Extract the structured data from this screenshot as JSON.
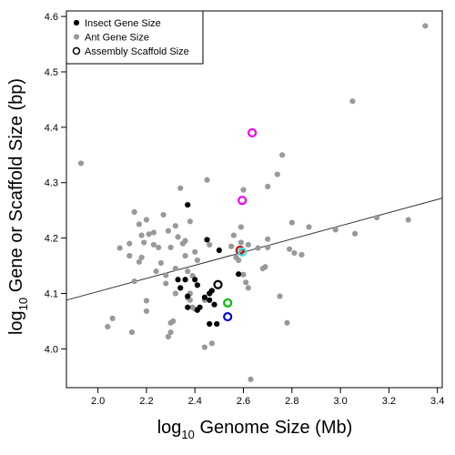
{
  "chart_data": {
    "type": "scatter",
    "title": "",
    "xlabel": {
      "base": "log",
      "sub": "10",
      "rest": " Genome Size (Mb)"
    },
    "ylabel": {
      "base": "log",
      "sub": "10",
      "rest": " Gene or Scaffold Size (bp)"
    },
    "xlim": [
      1.87,
      3.42
    ],
    "ylim": [
      3.93,
      4.61
    ],
    "xticks": [
      2.0,
      2.2,
      2.4,
      2.6,
      2.8,
      3.0,
      3.2,
      3.4
    ],
    "xtick_labels": [
      "2.0",
      "2.2",
      "2.4",
      "2.6",
      "2.8",
      "3.0",
      "3.2",
      "3.4"
    ],
    "yticks": [
      4.0,
      4.1,
      4.2,
      4.3,
      4.4,
      4.5,
      4.6
    ],
    "ytick_labels": [
      "4.0",
      "4.1",
      "4.2",
      "4.3",
      "4.4",
      "4.5",
      "4.6"
    ],
    "grid": false,
    "legend_position": "top-left",
    "legend": [
      {
        "label": "Insect Gene Size",
        "marker": "filled",
        "color": "#000000"
      },
      {
        "label": "Ant Gene Size",
        "marker": "filled",
        "color": "#999999"
      },
      {
        "label": "Assembly Scaffold Size",
        "marker": "open",
        "color": "#000000"
      }
    ],
    "series": [
      {
        "legend_index": 1,
        "marker": "filled",
        "color": "#999999",
        "points": [
          [
            1.93,
            4.335
          ],
          [
            2.06,
            4.055
          ],
          [
            2.04,
            4.04
          ],
          [
            2.09,
            4.182
          ],
          [
            2.13,
            4.19
          ],
          [
            2.13,
            4.168
          ],
          [
            2.15,
            4.247
          ],
          [
            2.15,
            4.122
          ],
          [
            2.14,
            4.03
          ],
          [
            2.17,
            4.225
          ],
          [
            2.17,
            4.157
          ],
          [
            2.18,
            4.165
          ],
          [
            2.18,
            4.205
          ],
          [
            2.19,
            4.192
          ],
          [
            2.2,
            4.087
          ],
          [
            2.2,
            4.068
          ],
          [
            2.2,
            4.233
          ],
          [
            2.21,
            4.207
          ],
          [
            2.23,
            4.21
          ],
          [
            2.23,
            4.188
          ],
          [
            2.24,
            4.14
          ],
          [
            2.26,
            4.155
          ],
          [
            2.25,
            4.183
          ],
          [
            2.27,
            4.242
          ],
          [
            2.28,
            4.133
          ],
          [
            2.28,
            4.118
          ],
          [
            2.29,
            4.213
          ],
          [
            2.3,
            4.183
          ],
          [
            2.32,
            4.222
          ],
          [
            2.32,
            4.145
          ],
          [
            2.29,
            4.022
          ],
          [
            2.3,
            4.03
          ],
          [
            2.3,
            4.047
          ],
          [
            2.31,
            4.05
          ],
          [
            2.32,
            4.1
          ],
          [
            2.34,
            4.29
          ],
          [
            2.33,
            4.202
          ],
          [
            2.35,
            4.19
          ],
          [
            2.36,
            4.195
          ],
          [
            2.36,
            4.168
          ],
          [
            2.37,
            4.14
          ],
          [
            2.37,
            4.092
          ],
          [
            2.38,
            4.1
          ],
          [
            2.38,
            4.088
          ],
          [
            2.38,
            4.23
          ],
          [
            2.39,
            4.132
          ],
          [
            2.39,
            4.075
          ],
          [
            2.4,
            4.175
          ],
          [
            2.41,
            4.16
          ],
          [
            2.4,
            4.072
          ],
          [
            2.44,
            4.088
          ],
          [
            2.44,
            4.003
          ],
          [
            2.45,
            4.305
          ],
          [
            2.46,
            4.188
          ],
          [
            2.46,
            4.088
          ],
          [
            2.47,
            4.01
          ],
          [
            2.55,
            4.185
          ],
          [
            2.56,
            4.205
          ],
          [
            2.57,
            4.165
          ],
          [
            2.58,
            4.16
          ],
          [
            2.59,
            4.192
          ],
          [
            2.59,
            4.22
          ],
          [
            2.6,
            4.287
          ],
          [
            2.59,
            4.175
          ],
          [
            2.6,
            4.134
          ],
          [
            2.61,
            4.12
          ],
          [
            2.62,
            4.188
          ],
          [
            2.62,
            4.11
          ],
          [
            2.63,
            3.945
          ],
          [
            2.66,
            4.182
          ],
          [
            2.68,
            4.145
          ],
          [
            2.69,
            4.148
          ],
          [
            2.7,
            4.183
          ],
          [
            2.7,
            4.198
          ],
          [
            2.7,
            4.293
          ],
          [
            2.74,
            4.315
          ],
          [
            2.76,
            4.35
          ],
          [
            2.75,
            4.095
          ],
          [
            2.78,
            4.047
          ],
          [
            2.79,
            4.18
          ],
          [
            2.8,
            4.228
          ],
          [
            2.81,
            4.173
          ],
          [
            2.84,
            4.17
          ],
          [
            2.87,
            4.22
          ],
          [
            2.98,
            4.215
          ],
          [
            3.05,
            4.447
          ],
          [
            3.06,
            4.208
          ],
          [
            3.15,
            4.237
          ],
          [
            3.28,
            4.233
          ],
          [
            3.35,
            4.583
          ]
        ]
      },
      {
        "legend_index": 0,
        "marker": "filled",
        "color": "#000000",
        "points": [
          [
            2.37,
            4.26
          ],
          [
            2.33,
            4.125
          ],
          [
            2.36,
            4.125
          ],
          [
            2.34,
            4.11
          ],
          [
            2.37,
            4.095
          ],
          [
            2.37,
            4.075
          ],
          [
            2.4,
            4.125
          ],
          [
            2.41,
            4.115
          ],
          [
            2.42,
            4.075
          ],
          [
            2.41,
            4.07
          ],
          [
            2.45,
            4.197
          ],
          [
            2.44,
            4.093
          ],
          [
            2.46,
            4.1
          ],
          [
            2.46,
            4.088
          ],
          [
            2.47,
            4.105
          ],
          [
            2.48,
            4.08
          ],
          [
            2.46,
            4.045
          ],
          [
            2.49,
            4.045
          ],
          [
            2.5,
            4.178
          ],
          [
            2.58,
            4.135
          ]
        ]
      },
      {
        "legend_index": 2,
        "marker": "open",
        "points": [
          [
            2.636,
            4.39,
            "#ee00ee"
          ],
          [
            2.595,
            4.268,
            "#ee00ee"
          ],
          [
            2.586,
            4.178,
            "#cc0000"
          ],
          [
            2.595,
            4.175,
            "#44dddd"
          ],
          [
            2.495,
            4.116,
            "#000000"
          ],
          [
            2.535,
            4.083,
            "#00bb00"
          ],
          [
            2.535,
            4.058,
            "#0000cc"
          ]
        ]
      }
    ],
    "regression_line": {
      "x": [
        1.87,
        3.42
      ],
      "y": [
        4.088,
        4.272
      ],
      "color": "#333333"
    }
  }
}
